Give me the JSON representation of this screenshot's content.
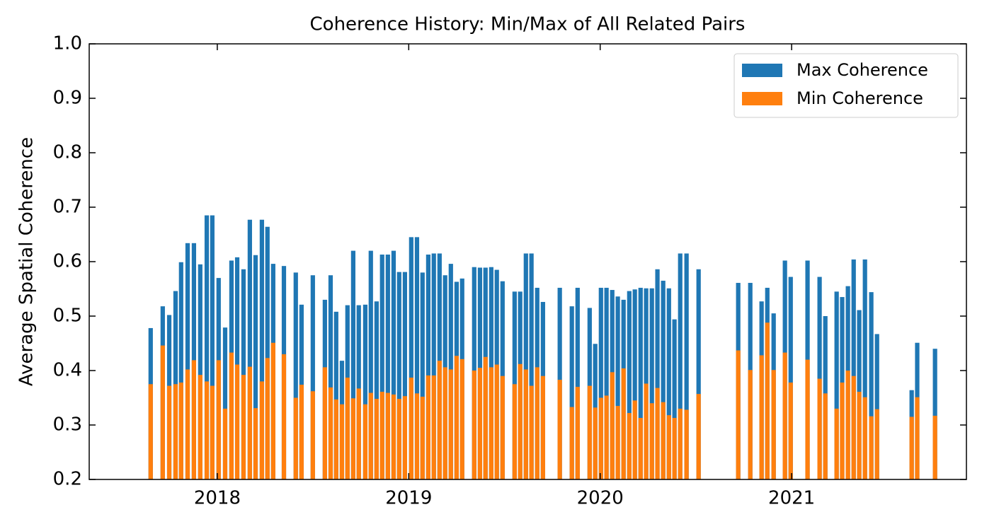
{
  "chart_data": {
    "type": "bar",
    "title": "Coherence History: Min/Max of All Related Pairs",
    "y_label": "Average Spatial Coherence",
    "x": [
      2017.652,
      2017.715,
      2017.749,
      2017.782,
      2017.811,
      2017.845,
      2017.878,
      2017.911,
      2017.945,
      2017.974,
      2018.007,
      2018.041,
      2018.074,
      2018.104,
      2018.137,
      2018.17,
      2018.2,
      2018.233,
      2018.262,
      2018.292,
      2018.348,
      2018.41,
      2018.44,
      2018.499,
      2018.562,
      2018.592,
      2018.621,
      2018.651,
      2018.68,
      2018.71,
      2018.739,
      2018.773,
      2018.802,
      2018.832,
      2018.861,
      2018.891,
      2018.921,
      2018.95,
      2018.98,
      2019.013,
      2019.043,
      2019.072,
      2019.102,
      2019.131,
      2019.161,
      2019.19,
      2019.22,
      2019.25,
      2019.279,
      2019.342,
      2019.372,
      2019.401,
      2019.431,
      2019.46,
      2019.49,
      2019.553,
      2019.582,
      2019.612,
      2019.641,
      2019.671,
      2019.701,
      2019.789,
      2019.852,
      2019.882,
      2019.945,
      2019.974,
      2020.004,
      2020.033,
      2020.063,
      2020.092,
      2020.122,
      2020.152,
      2020.181,
      2020.211,
      2020.24,
      2020.27,
      2020.299,
      2020.329,
      2020.359,
      2020.388,
      2020.418,
      2020.451,
      2020.514,
      2020.721,
      2020.784,
      2020.843,
      2020.873,
      2020.906,
      2020.965,
      2020.995,
      2021.083,
      2021.146,
      2021.176,
      2021.235,
      2021.264,
      2021.294,
      2021.324,
      2021.353,
      2021.383,
      2021.416,
      2021.446,
      2021.627,
      2021.656,
      2021.749
    ],
    "series": [
      {
        "name": "Max Coherence",
        "color": "#1f77b4",
        "values": [
          0.478,
          0.518,
          0.502,
          0.546,
          0.599,
          0.634,
          0.634,
          0.595,
          0.685,
          0.685,
          0.57,
          0.479,
          0.602,
          0.608,
          0.586,
          0.677,
          0.612,
          0.677,
          0.664,
          0.596,
          0.592,
          0.58,
          0.521,
          0.575,
          0.53,
          0.575,
          0.508,
          0.418,
          0.52,
          0.62,
          0.52,
          0.521,
          0.62,
          0.527,
          0.613,
          0.613,
          0.62,
          0.581,
          0.581,
          0.645,
          0.645,
          0.58,
          0.613,
          0.615,
          0.615,
          0.575,
          0.596,
          0.563,
          0.569,
          0.59,
          0.589,
          0.589,
          0.59,
          0.585,
          0.564,
          0.545,
          0.545,
          0.615,
          0.615,
          0.552,
          0.526,
          0.552,
          0.518,
          0.552,
          0.515,
          0.449,
          0.552,
          0.552,
          0.548,
          0.536,
          0.53,
          0.546,
          0.549,
          0.552,
          0.551,
          0.551,
          0.586,
          0.565,
          0.551,
          0.494,
          0.615,
          0.615,
          0.586,
          0.561,
          0.561,
          0.527,
          0.552,
          0.505,
          0.602,
          0.572,
          0.602,
          0.572,
          0.5,
          0.545,
          0.535,
          0.555,
          0.604,
          0.511,
          0.604,
          0.544,
          0.467,
          0.364,
          0.451,
          0.44
        ]
      },
      {
        "name": "Min Coherence",
        "color": "#ff7f0e",
        "values": [
          0.375,
          0.446,
          0.372,
          0.375,
          0.378,
          0.402,
          0.419,
          0.392,
          0.38,
          0.372,
          0.419,
          0.33,
          0.433,
          0.411,
          0.392,
          0.407,
          0.331,
          0.38,
          0.423,
          0.451,
          0.43,
          0.35,
          0.374,
          0.362,
          0.406,
          0.369,
          0.347,
          0.338,
          0.387,
          0.349,
          0.367,
          0.338,
          0.359,
          0.348,
          0.361,
          0.359,
          0.356,
          0.348,
          0.353,
          0.387,
          0.358,
          0.352,
          0.391,
          0.391,
          0.418,
          0.406,
          0.402,
          0.427,
          0.421,
          0.4,
          0.405,
          0.425,
          0.406,
          0.411,
          0.39,
          0.375,
          0.412,
          0.402,
          0.372,
          0.406,
          0.39,
          0.383,
          0.333,
          0.37,
          0.372,
          0.332,
          0.35,
          0.354,
          0.397,
          0.335,
          0.404,
          0.322,
          0.345,
          0.313,
          0.376,
          0.34,
          0.368,
          0.342,
          0.318,
          0.313,
          0.33,
          0.328,
          0.357,
          0.437,
          0.401,
          0.428,
          0.488,
          0.401,
          0.433,
          0.378,
          0.42,
          0.385,
          0.358,
          0.33,
          0.378,
          0.4,
          0.39,
          0.361,
          0.351,
          0.316,
          0.329,
          0.315,
          0.351,
          0.317
        ]
      }
    ],
    "xlim": [
      2017.331,
      2021.913
    ],
    "xticks": [
      2018,
      2019,
      2020,
      2021
    ],
    "ylim": [
      0.2,
      1.0
    ],
    "yticks": [
      0.2,
      0.3,
      0.4,
      0.5,
      0.6,
      0.7,
      0.8,
      0.9,
      {
        "value": 1.0,
        "label": "1.0"
      }
    ],
    "legend": "upper right",
    "grid": false
  }
}
